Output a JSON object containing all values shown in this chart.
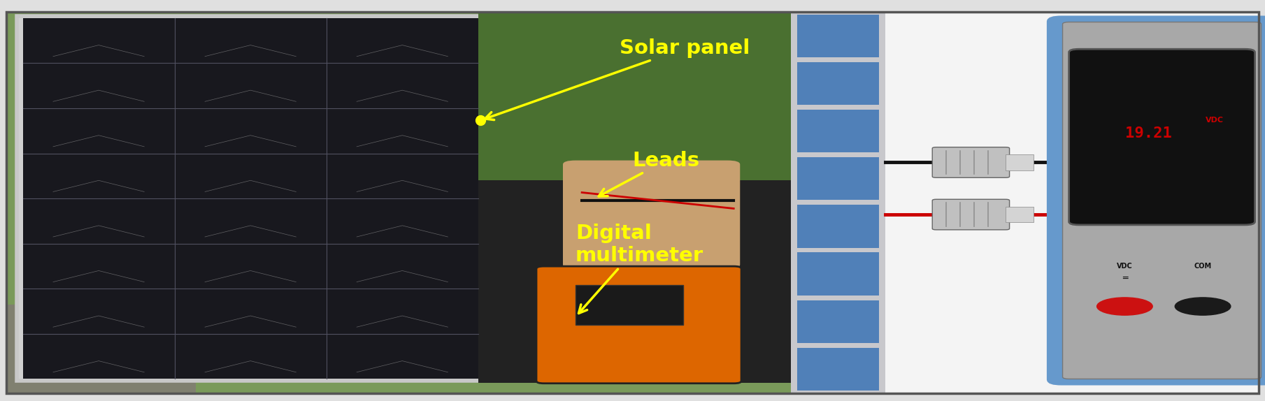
{
  "bg_color": "#e0e0e0",
  "border_color": "#555555",
  "figure_width": 18.09,
  "figure_height": 5.74,
  "photo_split": 0.625,
  "solar_panel_strip": {
    "cell_color": "#5080b8",
    "bg_color": "#c0c0c8",
    "n_rows": 8,
    "n_cols": 4
  },
  "multimeter": {
    "body_color": "#a8a8a8",
    "border_color": "#6699cc",
    "display_color": "#111111",
    "reading": "19.21",
    "reading_color": "#cc0000",
    "unit": "VDC",
    "unit_color": "#cc0000"
  },
  "labels": {
    "solar_panel": {
      "text": "Solar panel",
      "color": "#ffff00",
      "fontsize": 21
    },
    "leads": {
      "text": "Leads",
      "color": "#ffff00",
      "fontsize": 21
    },
    "digital": {
      "text": "Digital",
      "color": "#ffff00",
      "fontsize": 21
    },
    "multimeter": {
      "text": "multimeter",
      "color": "#ffff00",
      "fontsize": 21
    }
  }
}
